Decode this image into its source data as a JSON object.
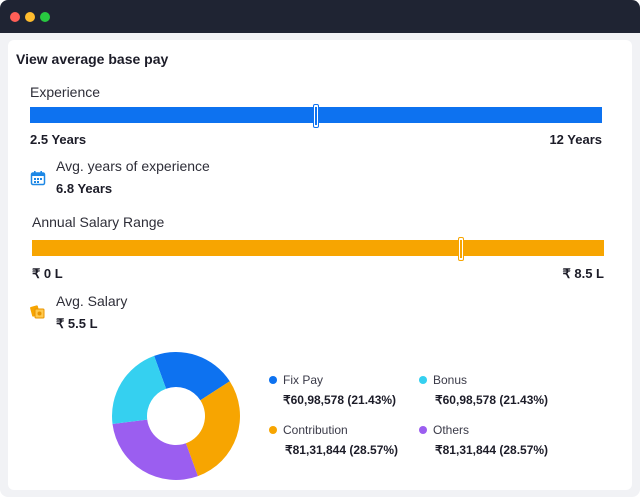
{
  "section": {
    "title": "View average base pay"
  },
  "experience": {
    "label": "Experience",
    "min_label": "2.5 Years",
    "max_label": "12 Years",
    "slider_fraction": 0.5,
    "avg_label": "Avg. years of experience",
    "avg_value": "6.8 Years",
    "color": "#0d72f0",
    "icon": "calendar-icon"
  },
  "salary": {
    "label": "Annual Salary Range",
    "min_label": "₹ 0 L",
    "max_label": "₹ 8.5 L",
    "slider_fraction": 0.75,
    "avg_label": "Avg. Salary",
    "avg_value": "₹ 5.5 L",
    "color": "#f7a501",
    "icon": "money-icon"
  },
  "chart_data": {
    "type": "pie",
    "title": "",
    "series": [
      {
        "name": "Fix Pay",
        "value_label": "₹60,98,578 (21.43%)",
        "percent": 21.43,
        "color": "#0d72f0"
      },
      {
        "name": "Bonus",
        "value_label": "₹60,98,578 (21.43%)",
        "percent": 21.43,
        "color": "#35d0f0"
      },
      {
        "name": "Contribution",
        "value_label": "₹81,31,844 (28.57%)",
        "percent": 28.57,
        "color": "#f7a501"
      },
      {
        "name": "Others",
        "value_label": "₹81,31,844 (28.57%)",
        "percent": 28.57,
        "color": "#9b5ef0"
      }
    ]
  }
}
